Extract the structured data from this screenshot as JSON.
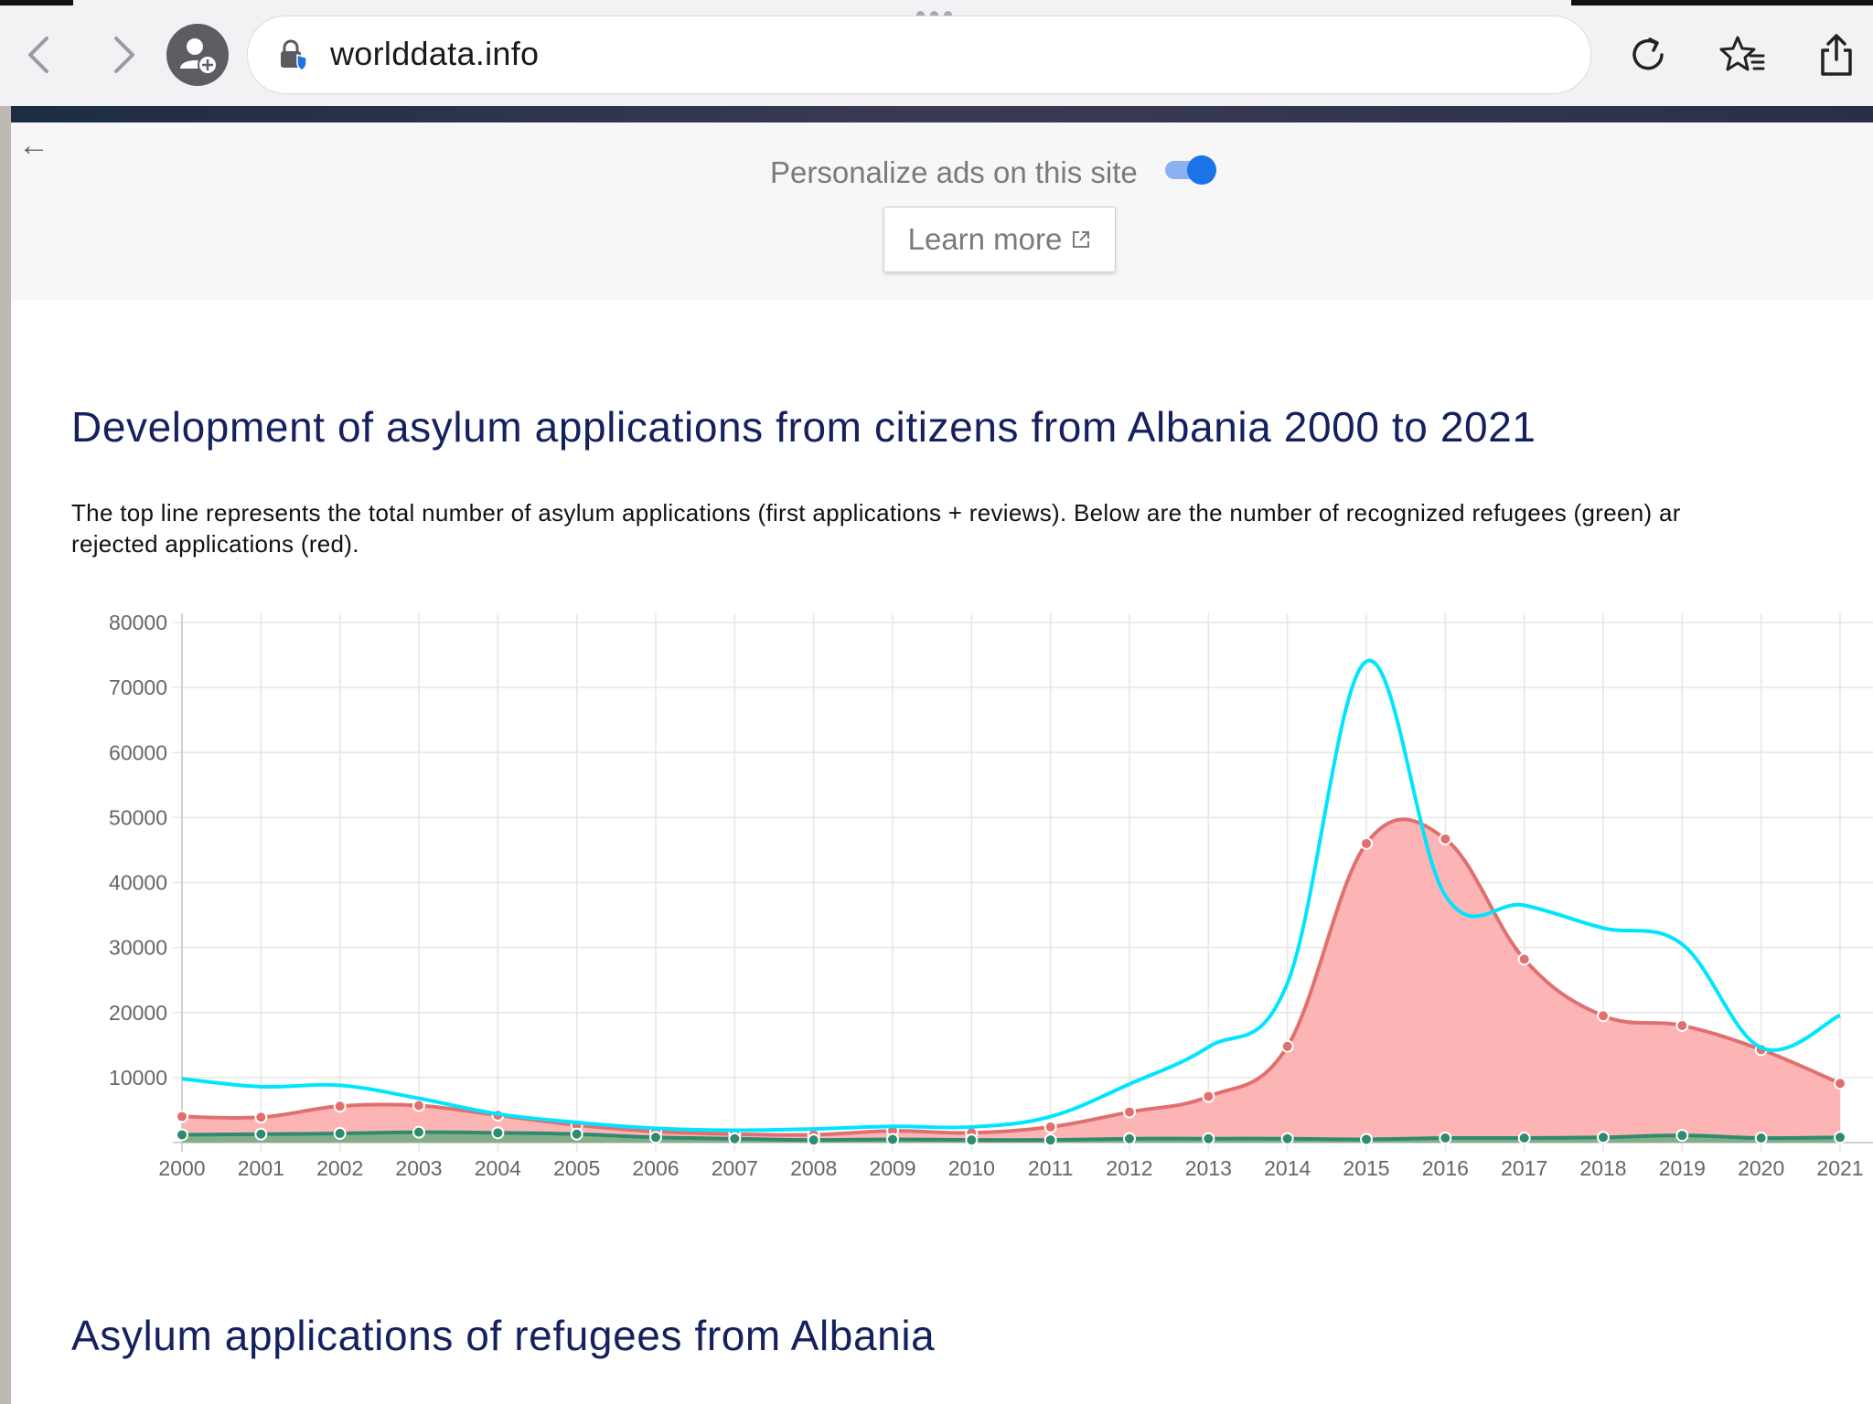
{
  "browser": {
    "url": "worlddata.info",
    "icons": {
      "back": "chevron-left-icon",
      "forward": "chevron-right-icon",
      "profile": "add-profile-icon",
      "lock": "secure-lock-icon",
      "reload": "reload-icon",
      "favorites": "add-favorite-icon",
      "share": "share-icon"
    }
  },
  "ad_panel": {
    "label": "Personalize ads on this site",
    "toggle_on": true,
    "learn_more": "Learn more"
  },
  "page": {
    "title": "Development of asylum applications from citizens from Albania 2000 to 2021",
    "description_line1": "The top line represents the total number of asylum applications (first applications + reviews). Below are the number of recognized refugees (green) ar",
    "description_line2": "rejected applications (red).",
    "section_title": "Asylum applications of refugees from Albania"
  },
  "chart_data": {
    "type": "area",
    "x": [
      "2000",
      "2001",
      "2002",
      "2003",
      "2004",
      "2005",
      "2006",
      "2007",
      "2008",
      "2009",
      "2010",
      "2011",
      "2012",
      "2013",
      "2014",
      "2015",
      "2016",
      "2017",
      "2018",
      "2019",
      "2020",
      "2021"
    ],
    "ylim": [
      0,
      80000
    ],
    "yticks": [
      10000,
      20000,
      30000,
      40000,
      50000,
      60000,
      70000,
      80000
    ],
    "grid": true,
    "series": [
      {
        "key": "total",
        "color": "#00e5ff",
        "fill": false,
        "markers": false,
        "values": [
          9800,
          8600,
          8800,
          6800,
          4400,
          3100,
          2200,
          1900,
          2100,
          2500,
          2400,
          4000,
          9000,
          14700,
          24500,
          74000,
          38000,
          36500,
          33000,
          30500,
          14600,
          19600
        ]
      },
      {
        "key": "rejected",
        "color": "#e07070",
        "fill": "#fdb0b0",
        "markers": true,
        "values": [
          4000,
          3900,
          5600,
          5700,
          4200,
          2700,
          1700,
          1300,
          1200,
          1800,
          1500,
          2400,
          4700,
          7100,
          14800,
          46000,
          46700,
          28200,
          19500,
          18000,
          14300,
          9100
        ]
      },
      {
        "key": "recognized",
        "color": "#2e8b6f",
        "fill": "#7daf84",
        "markers": true,
        "values": [
          1200,
          1300,
          1400,
          1600,
          1500,
          1300,
          800,
          600,
          400,
          500,
          400,
          400,
          600,
          600,
          600,
          500,
          700,
          700,
          800,
          1100,
          700,
          800
        ]
      }
    ]
  }
}
